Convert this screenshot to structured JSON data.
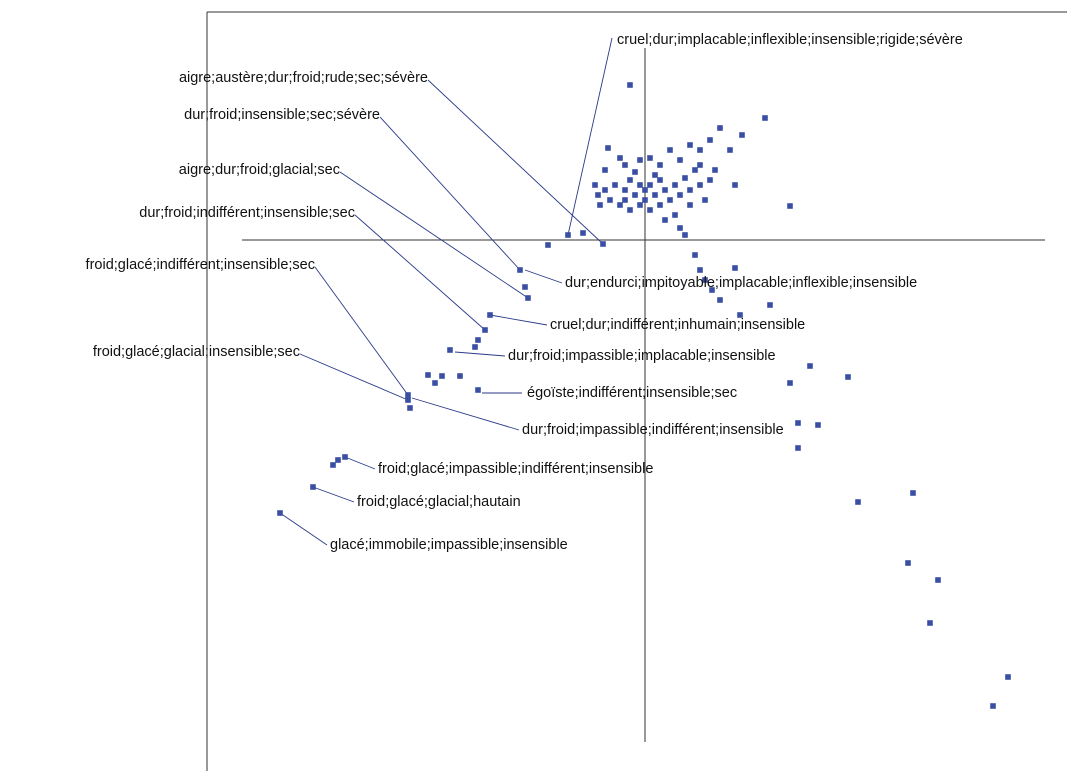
{
  "chart_data": {
    "type": "scatter",
    "color": "#3a4fa3",
    "xlim": [
      -4.38,
      4.22
    ],
    "ylim": [
      -5.31,
      2.28
    ],
    "x": [
      -0.15,
      1.2,
      0.75,
      0.97,
      1.45,
      -0.77,
      -0.62,
      -0.97,
      -0.42,
      -1.25,
      -1.17,
      -1.2,
      -1.55,
      -1.6,
      -1.67,
      -1.7,
      -1.95,
      -1.85,
      -2.17,
      -2.1,
      -2.03,
      -1.67,
      -2.37,
      -2.35,
      -2.37,
      -3.0,
      -3.07,
      -3.12,
      -3.32,
      -3.65,
      0.5,
      0.55,
      0.6,
      0.9,
      0.75,
      0.95,
      1.25,
      1.65,
      2.03,
      1.45,
      1.53,
      1.73,
      1.53,
      2.13,
      2.68,
      2.63,
      2.93,
      2.85,
      3.63,
      3.48,
      0.4,
      0.35,
      0.67,
      -0.37,
      -0.25,
      -0.4,
      -0.2,
      -0.1,
      -0.05,
      0.05,
      0.15,
      0.25,
      0.35,
      0.45,
      0.55,
      0.65,
      0.5,
      0.4,
      0.3,
      0.2,
      0.1,
      0,
      -0.1,
      -0.2,
      -0.3,
      -0.4,
      -0.47,
      -0.35,
      -0.25,
      -0.15,
      -0.05,
      0.05,
      0.15,
      0.25,
      0.35,
      0.45,
      0.55,
      0.65,
      0.7,
      0.85,
      -0.45,
      -0.5,
      -0.05,
      0.05,
      0.15,
      -0.15,
      0.3,
      0.2,
      0.45,
      0.55,
      0.6,
      0.9,
      -0.2,
      0,
      0.1
    ],
    "values": [
      1.55,
      1.22,
      1.12,
      1.05,
      0.34,
      0.05,
      0.07,
      -0.05,
      -0.04,
      -0.3,
      -0.58,
      -0.47,
      -0.75,
      -0.9,
      -1.0,
      -1.07,
      -1.1,
      -1.36,
      -1.35,
      -1.43,
      -1.36,
      -1.5,
      -1.55,
      -1.68,
      -1.6,
      -2.17,
      -2.2,
      -2.25,
      -2.47,
      -2.73,
      -0.15,
      -0.3,
      -0.4,
      -0.28,
      -0.6,
      -0.75,
      -0.65,
      -1.26,
      -1.37,
      -1.43,
      -1.83,
      -1.85,
      -2.08,
      -2.62,
      -2.53,
      -3.23,
      -3.4,
      -3.83,
      -4.37,
      -4.66,
      0.05,
      0.12,
      -0.5,
      0.92,
      0.82,
      0.7,
      0.75,
      0.68,
      0.8,
      0.82,
      0.75,
      0.9,
      0.8,
      0.95,
      0.9,
      1.0,
      0.7,
      0.62,
      0.55,
      0.5,
      0.45,
      0.4,
      0.45,
      0.5,
      0.55,
      0.5,
      0.45,
      0.4,
      0.35,
      0.3,
      0.35,
      0.3,
      0.35,
      0.4,
      0.45,
      0.5,
      0.55,
      0.6,
      0.7,
      0.9,
      0.35,
      0.55,
      0.55,
      0.55,
      0.6,
      0.6,
      0.25,
      0.2,
      0.35,
      0.75,
      0.4,
      0.55,
      0.4,
      0.5,
      0.65
    ],
    "annotations": [
      "cruel;dur;implacable;inflexible;insensible;rigide;sévère",
      "aigre;austère;dur;froid;rude;sec;sévère",
      "dur;froid;insensible;sec;sévère",
      "aigre;dur;froid;glacial;sec",
      "dur;froid;indifférent;insensible;sec",
      "froid;glacé;indifférent;insensible;sec",
      "froid;glacé;glacial;insensible;sec",
      "dur;endurci;impitoyable;implacable;inflexible;insensible",
      "cruel;dur;indifférent;inhumain;insensible",
      "dur;froid;impassible;implacable;insensible",
      "égoïste;indifférent;insensible;sec",
      "dur;froid;impassible;indifférent;insensible",
      "froid;glacé;impassible;indifférent;insensible",
      "froid;glacé;glacial;hautain",
      "glacé;immobile;impassible;insensible"
    ]
  }
}
